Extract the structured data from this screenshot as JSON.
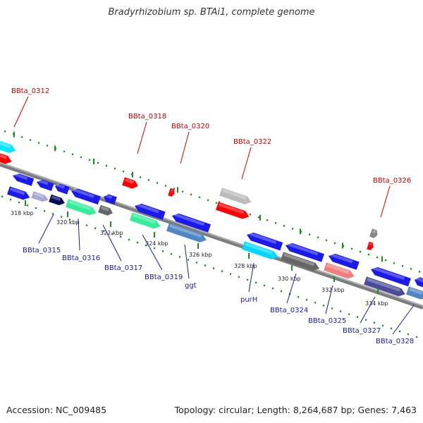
{
  "title": "Bradyrhizobium sp. BTAi1, complete genome",
  "footer": {
    "accession": "Accession: NC_009485",
    "topology": "Topology: circular; Length: 8,264,687 bp; Genes: 7,463"
  },
  "colors": {
    "backbone": "#8a8a8a",
    "tick_scale": "#1e8c1e",
    "label_top": "#cc0000",
    "label_bottom": "#1a1aa8"
  },
  "scale_labels": [
    "318 kbp",
    "320 kbp",
    "322 kbp",
    "324 kbp",
    "326 kbp",
    "328 kbp",
    "330 kbp",
    "332 kbp",
    "334 kbp"
  ],
  "gene_labels_top": [
    "BBta_0312",
    "BBta_0318",
    "BBta_0320",
    "BBta_0322",
    "BBta_0326"
  ],
  "gene_labels_bottom": [
    "BBta_0315",
    "BBta_0316",
    "BBta_0317",
    "BBta_0319",
    "ggt",
    "purH",
    "BBta_0324",
    "BBta_0325",
    "BBta_0327",
    "BBta_0328"
  ]
}
